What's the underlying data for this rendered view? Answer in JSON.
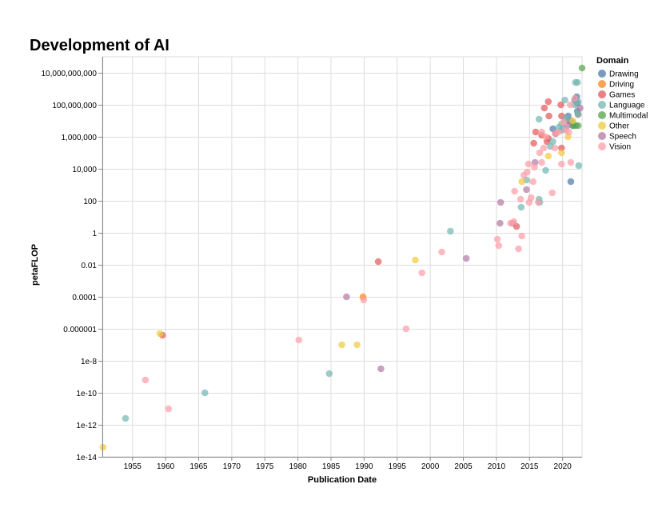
{
  "chart_data": {
    "type": "scatter",
    "title": "Development of AI",
    "xlabel": "Publication Date",
    "ylabel": "petaFLOP",
    "x_scale": "time",
    "y_scale": "log",
    "xlim": [
      1950.5,
      2023.0
    ],
    "ylim_log10": [
      -14,
      11
    ],
    "x_ticks": [
      1955,
      1960,
      1965,
      1970,
      1975,
      1980,
      1985,
      1990,
      1995,
      2000,
      2005,
      2010,
      2015,
      2020
    ],
    "y_ticks": [
      {
        "value_log10": -14,
        "label": "1e-14"
      },
      {
        "value_log10": -12,
        "label": "1e-12"
      },
      {
        "value_log10": -10,
        "label": "1e-10"
      },
      {
        "value_log10": -8,
        "label": "1e-8"
      },
      {
        "value_log10": -6,
        "label": "0.000001"
      },
      {
        "value_log10": -4,
        "label": "0.0001"
      },
      {
        "value_log10": -2,
        "label": "0.01"
      },
      {
        "value_log10": 0,
        "label": "1"
      },
      {
        "value_log10": 2,
        "label": "100"
      },
      {
        "value_log10": 4,
        "label": "10,000"
      },
      {
        "value_log10": 6,
        "label": "1,000,000"
      },
      {
        "value_log10": 8,
        "label": "100,000,000"
      },
      {
        "value_log10": 10,
        "label": "10,000,000,000"
      }
    ],
    "grid": true,
    "legend": {
      "title": "Domain",
      "placement": "top-right"
    },
    "series": [
      {
        "name": "Drawing",
        "color": "#4c78a8",
        "points": [
          [
            2018.6,
            6.5
          ],
          [
            2020.9,
            7.3
          ],
          [
            2021.2,
            7.0
          ],
          [
            2021.3,
            3.2
          ],
          [
            2021.9,
            8.3
          ],
          [
            2022.2,
            8.5
          ],
          [
            2022.3,
            8.1
          ],
          [
            2022.3,
            7.6
          ]
        ]
      },
      {
        "name": "Driving",
        "color": "#f58518",
        "points": [
          [
            1989.9,
            -4.0
          ]
        ]
      },
      {
        "name": "Games",
        "color": "#e45756",
        "points": [
          [
            1959.6,
            -6.4
          ],
          [
            1992.2,
            -1.8
          ],
          [
            2013.1,
            0.4
          ],
          [
            2015.7,
            5.6
          ],
          [
            2016.0,
            6.3
          ],
          [
            2016.9,
            6.1
          ],
          [
            2017.3,
            7.8
          ],
          [
            2017.9,
            8.2
          ],
          [
            2017.7,
            5.7
          ],
          [
            2017.9,
            5.9
          ],
          [
            2018.0,
            7.3
          ],
          [
            2019.8,
            8.0
          ],
          [
            2019.9,
            7.3
          ],
          [
            2019.9,
            5.3
          ],
          [
            2021.0,
            7.0
          ],
          [
            2022.4,
            7.4
          ]
        ]
      },
      {
        "name": "Language",
        "color": "#72b7b2",
        "points": [
          [
            1954.0,
            -11.6
          ],
          [
            1966.0,
            -10.0
          ],
          [
            1984.8,
            -8.8
          ],
          [
            2003.1,
            0.1
          ],
          [
            2013.8,
            1.6
          ],
          [
            2014.6,
            3.3
          ],
          [
            2016.5,
            7.1
          ],
          [
            2016.5,
            2.1
          ],
          [
            2016.6,
            1.9
          ],
          [
            2017.5,
            3.9
          ],
          [
            2018.2,
            5.4
          ],
          [
            2018.6,
            5.7
          ],
          [
            2019.0,
            6.2
          ],
          [
            2019.5,
            6.6
          ],
          [
            2019.8,
            6.4
          ],
          [
            2019.9,
            6.8
          ],
          [
            2020.2,
            6.5
          ],
          [
            2020.4,
            8.3
          ],
          [
            2020.4,
            7.1
          ],
          [
            2020.8,
            7.1
          ],
          [
            2021.6,
            6.9
          ],
          [
            2021.6,
            6.7
          ],
          [
            2021.9,
            8.0
          ],
          [
            2022.0,
            9.4
          ],
          [
            2022.3,
            9.4
          ],
          [
            2022.3,
            7.6
          ],
          [
            2022.4,
            8.2
          ],
          [
            2022.4,
            7.4
          ],
          [
            2022.5,
            4.2
          ]
        ]
      },
      {
        "name": "Multimodal",
        "color": "#54a24b",
        "points": [
          [
            2021.6,
            6.7
          ],
          [
            2022.0,
            6.7
          ],
          [
            2022.4,
            6.7
          ],
          [
            2023.0,
            10.3
          ]
        ]
      },
      {
        "name": "Other",
        "color": "#eeca3b",
        "points": [
          [
            1950.6,
            -13.4
          ],
          [
            1959.2,
            -6.3
          ],
          [
            1986.7,
            -7.0
          ],
          [
            1989.0,
            -7.0
          ],
          [
            1997.8,
            -1.7
          ],
          [
            2013.9,
            3.2
          ],
          [
            2017.9,
            4.8
          ],
          [
            2019.9,
            5.0
          ],
          [
            2020.9,
            6.0
          ],
          [
            2021.6,
            7.0
          ]
        ]
      },
      {
        "name": "Speech",
        "color": "#b279a2",
        "points": [
          [
            1987.4,
            -4.0
          ],
          [
            1992.6,
            -8.5
          ],
          [
            2005.5,
            -1.6
          ],
          [
            2010.6,
            0.6
          ],
          [
            2010.7,
            1.9
          ],
          [
            2012.5,
            0.6
          ],
          [
            2014.6,
            2.7
          ],
          [
            2015.9,
            4.4
          ],
          [
            2019.0,
            6.2
          ],
          [
            2020.8,
            6.7
          ],
          [
            2022.7,
            7.8
          ]
        ]
      },
      {
        "name": "Vision",
        "color": "#ff9da6",
        "points": [
          [
            1957.0,
            -9.2
          ],
          [
            1960.5,
            -11.0
          ],
          [
            1980.2,
            -6.7
          ],
          [
            1990.0,
            -4.2
          ],
          [
            1996.4,
            -6.0
          ],
          [
            1998.8,
            -2.5
          ],
          [
            2001.8,
            -1.2
          ],
          [
            2010.2,
            -0.4
          ],
          [
            2010.4,
            -0.8
          ],
          [
            2012.2,
            0.6
          ],
          [
            2012.7,
            0.7
          ],
          [
            2012.8,
            2.6
          ],
          [
            2013.4,
            -1.0
          ],
          [
            2013.7,
            2.1
          ],
          [
            2013.9,
            -0.2
          ],
          [
            2014.2,
            3.6
          ],
          [
            2014.7,
            3.8
          ],
          [
            2014.9,
            4.3
          ],
          [
            2015.0,
            1.9
          ],
          [
            2015.3,
            2.2
          ],
          [
            2015.6,
            3.2
          ],
          [
            2015.8,
            4.1
          ],
          [
            2016.4,
            1.9
          ],
          [
            2016.6,
            5.0
          ],
          [
            2016.9,
            4.4
          ],
          [
            2016.9,
            6.3
          ],
          [
            2017.2,
            5.3
          ],
          [
            2017.5,
            6.0
          ],
          [
            2018.5,
            2.5
          ],
          [
            2018.9,
            5.3
          ],
          [
            2019.0,
            6.2
          ],
          [
            2019.4,
            6.3
          ],
          [
            2019.9,
            4.3
          ],
          [
            2020.2,
            6.9
          ],
          [
            2020.5,
            6.4
          ],
          [
            2021.0,
            6.3
          ],
          [
            2021.2,
            8.0
          ],
          [
            2021.3,
            4.4
          ],
          [
            2021.9,
            8.4
          ]
        ]
      }
    ]
  }
}
